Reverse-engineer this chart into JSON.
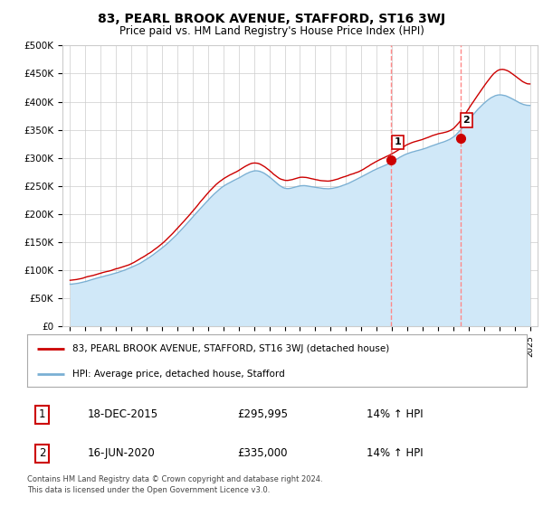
{
  "title": "83, PEARL BROOK AVENUE, STAFFORD, ST16 3WJ",
  "subtitle": "Price paid vs. HM Land Registry's House Price Index (HPI)",
  "ylabel_ticks": [
    "£0",
    "£50K",
    "£100K",
    "£150K",
    "£200K",
    "£250K",
    "£300K",
    "£350K",
    "£400K",
    "£450K",
    "£500K"
  ],
  "ytick_values": [
    0,
    50000,
    100000,
    150000,
    200000,
    250000,
    300000,
    350000,
    400000,
    450000,
    500000
  ],
  "ylim": [
    0,
    500000
  ],
  "xlim_start": 1994.5,
  "xlim_end": 2025.5,
  "sale1_x": 2015.96,
  "sale1_y": 295995,
  "sale2_x": 2020.46,
  "sale2_y": 335000,
  "red_line_color": "#cc0000",
  "blue_line_color": "#7ab0d4",
  "blue_fill_color": "#d0e8f8",
  "dashed_line_color": "#ff8888",
  "legend_label1": "83, PEARL BROOK AVENUE, STAFFORD, ST16 3WJ (detached house)",
  "legend_label2": "HPI: Average price, detached house, Stafford",
  "table_row1_num": "1",
  "table_row1_date": "18-DEC-2015",
  "table_row1_price": "£295,995",
  "table_row1_hpi": "14% ↑ HPI",
  "table_row2_num": "2",
  "table_row2_date": "16-JUN-2020",
  "table_row2_price": "£335,000",
  "table_row2_hpi": "14% ↑ HPI",
  "footer_line1": "Contains HM Land Registry data © Crown copyright and database right 2024.",
  "footer_line2": "This data is licensed under the Open Government Licence v3.0.",
  "background_color": "#ffffff",
  "grid_color": "#cccccc",
  "hpi_knots_x": [
    1995,
    1996,
    1997,
    1998,
    1999,
    2000,
    2001,
    2002,
    2003,
    2004,
    2005,
    2006,
    2007,
    2008,
    2009,
    2010,
    2011,
    2012,
    2013,
    2014,
    2015,
    2016,
    2017,
    2018,
    2019,
    2020,
    2021,
    2022,
    2023,
    2024,
    2025
  ],
  "hpi_knots_y": [
    75000,
    80000,
    88000,
    95000,
    105000,
    120000,
    140000,
    165000,
    195000,
    225000,
    250000,
    265000,
    278000,
    268000,
    248000,
    252000,
    250000,
    248000,
    255000,
    268000,
    282000,
    295000,
    310000,
    318000,
    328000,
    340000,
    370000,
    400000,
    415000,
    405000,
    395000
  ],
  "prop_knots_x": [
    1995,
    1996,
    1997,
    1998,
    1999,
    2000,
    2001,
    2002,
    2003,
    2004,
    2005,
    2006,
    2007,
    2008,
    2009,
    2010,
    2011,
    2012,
    2013,
    2014,
    2015,
    2016,
    2017,
    2018,
    2019,
    2020,
    2021,
    2022,
    2023,
    2024,
    2025
  ],
  "prop_knots_y": [
    82000,
    87000,
    95000,
    103000,
    112000,
    128000,
    148000,
    175000,
    205000,
    238000,
    263000,
    278000,
    292000,
    278000,
    260000,
    265000,
    262000,
    260000,
    268000,
    278000,
    295000,
    308000,
    325000,
    335000,
    345000,
    355000,
    390000,
    430000,
    460000,
    450000,
    435000
  ],
  "marker_size": 7
}
